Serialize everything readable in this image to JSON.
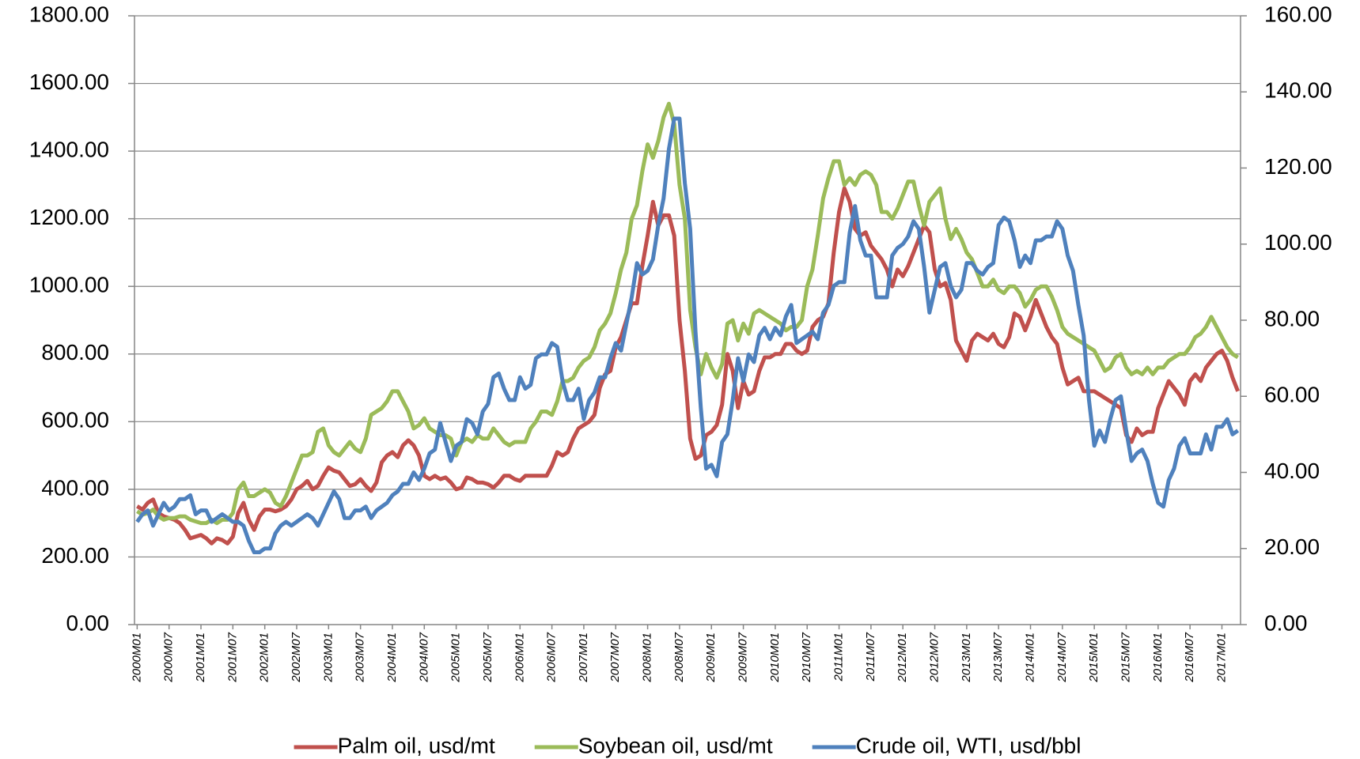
{
  "chart_data": {
    "type": "line",
    "categories": [
      "2000M01",
      null,
      null,
      null,
      null,
      null,
      "2000M07",
      null,
      null,
      null,
      null,
      null,
      "2001M01",
      null,
      null,
      null,
      null,
      null,
      "2001M07",
      null,
      null,
      null,
      null,
      null,
      "2002M01",
      null,
      null,
      null,
      null,
      null,
      "2002M07",
      null,
      null,
      null,
      null,
      null,
      "2003M01",
      null,
      null,
      null,
      null,
      null,
      "2003M07",
      null,
      null,
      null,
      null,
      null,
      "2004M01",
      null,
      null,
      null,
      null,
      null,
      "2004M07",
      null,
      null,
      null,
      null,
      null,
      "2005M01",
      null,
      null,
      null,
      null,
      null,
      "2005M07",
      null,
      null,
      null,
      null,
      null,
      "2006M01",
      null,
      null,
      null,
      null,
      null,
      "2006M07",
      null,
      null,
      null,
      null,
      null,
      "2007M01",
      null,
      null,
      null,
      null,
      null,
      "2007M07",
      null,
      null,
      null,
      null,
      null,
      "2008M01",
      null,
      null,
      null,
      null,
      null,
      "2008M07",
      null,
      null,
      null,
      null,
      null,
      "2009M01",
      null,
      null,
      null,
      null,
      null,
      "2009M07",
      null,
      null,
      null,
      null,
      null,
      "2010M01",
      null,
      null,
      null,
      null,
      null,
      "2010M07",
      null,
      null,
      null,
      null,
      null,
      "2011M01",
      null,
      null,
      null,
      null,
      null,
      "2011M07",
      null,
      null,
      null,
      null,
      null,
      "2012M01",
      null,
      null,
      null,
      null,
      null,
      "2012M07",
      null,
      null,
      null,
      null,
      null,
      "2013M01",
      null,
      null,
      null,
      null,
      null,
      "2013M07",
      null,
      null,
      null,
      null,
      null,
      "2014M01",
      null,
      null,
      null,
      null,
      null,
      "2014M07",
      null,
      null,
      null,
      null,
      null,
      "2015M01",
      null,
      null,
      null,
      null,
      null,
      "2015M07",
      null,
      null,
      null,
      null,
      null,
      "2016M01",
      null,
      null,
      null,
      null,
      null,
      "2016M07",
      null,
      null,
      null,
      null,
      null,
      "2017M01",
      null,
      null,
      null
    ],
    "series": [
      {
        "name": "Palm oil, usd/mt",
        "color": "#c0504d",
        "values": [
          350,
          340,
          360,
          370,
          330,
          320,
          315,
          310,
          300,
          280,
          255,
          260,
          265,
          255,
          240,
          255,
          250,
          240,
          260,
          330,
          360,
          310,
          280,
          320,
          340,
          340,
          335,
          340,
          350,
          370,
          400,
          410,
          425,
          400,
          410,
          440,
          465,
          455,
          450,
          430,
          410,
          415,
          430,
          410,
          395,
          420,
          480,
          500,
          510,
          495,
          530,
          545,
          530,
          500,
          440,
          430,
          440,
          430,
          435,
          420,
          400,
          405,
          435,
          430,
          420,
          420,
          415,
          405,
          420,
          440,
          440,
          430,
          425,
          440,
          440,
          440,
          440,
          440,
          470,
          510,
          500,
          510,
          550,
          580,
          590,
          600,
          620,
          700,
          740,
          750,
          820,
          850,
          900,
          950,
          950,
          1060,
          1150,
          1250,
          1180,
          1210,
          1210,
          1150,
          900,
          750,
          550,
          490,
          500,
          560,
          570,
          590,
          650,
          800,
          750,
          640,
          720,
          680,
          690,
          750,
          790,
          790,
          800,
          800,
          830,
          830,
          810,
          800,
          810,
          880,
          900,
          910,
          950,
          1100,
          1220,
          1290,
          1250,
          1170,
          1150,
          1160,
          1120,
          1100,
          1080,
          1050,
          1000,
          1050,
          1030,
          1060,
          1100,
          1140,
          1180,
          1160,
          1050,
          1000,
          1010,
          960,
          840,
          810,
          780,
          840,
          860,
          850,
          840,
          860,
          830,
          820,
          850,
          920,
          910,
          870,
          910,
          960,
          920,
          880,
          850,
          830,
          760,
          710,
          720,
          730,
          690,
          690,
          690,
          680,
          670,
          660,
          650,
          640,
          560,
          540,
          580,
          560,
          570,
          570,
          640,
          680,
          720,
          700,
          680,
          650,
          720,
          740,
          720,
          760,
          780,
          800,
          810,
          780,
          730,
          690
        ]
      },
      {
        "name": "Soybean oil, usd/mt",
        "color": "#9bbb59",
        "values": [
          335,
          325,
          330,
          340,
          320,
          310,
          315,
          315,
          320,
          320,
          310,
          305,
          300,
          300,
          310,
          300,
          310,
          310,
          330,
          400,
          420,
          380,
          380,
          390,
          400,
          390,
          360,
          350,
          380,
          420,
          460,
          500,
          500,
          510,
          570,
          580,
          530,
          510,
          500,
          520,
          540,
          520,
          510,
          550,
          620,
          630,
          640,
          660,
          690,
          690,
          660,
          630,
          580,
          590,
          610,
          580,
          570,
          560,
          560,
          550,
          500,
          540,
          550,
          540,
          560,
          550,
          550,
          580,
          560,
          540,
          530,
          540,
          540,
          540,
          580,
          600,
          630,
          630,
          620,
          660,
          720,
          720,
          730,
          760,
          780,
          790,
          820,
          870,
          890,
          920,
          980,
          1050,
          1100,
          1200,
          1240,
          1340,
          1420,
          1380,
          1430,
          1500,
          1540,
          1480,
          1300,
          1200,
          930,
          820,
          740,
          800,
          760,
          730,
          770,
          890,
          900,
          840,
          890,
          860,
          920,
          930,
          920,
          910,
          900,
          890,
          870,
          880,
          880,
          900,
          1000,
          1050,
          1150,
          1260,
          1320,
          1370,
          1370,
          1300,
          1320,
          1300,
          1330,
          1340,
          1330,
          1300,
          1220,
          1220,
          1200,
          1230,
          1270,
          1310,
          1310,
          1240,
          1180,
          1250,
          1270,
          1290,
          1200,
          1140,
          1170,
          1140,
          1100,
          1080,
          1040,
          1000,
          1000,
          1020,
          990,
          980,
          1000,
          1000,
          980,
          940,
          960,
          990,
          1000,
          1000,
          970,
          930,
          880,
          860,
          850,
          840,
          830,
          820,
          810,
          780,
          750,
          760,
          790,
          800,
          760,
          740,
          750,
          740,
          760,
          740,
          760,
          760,
          780,
          790,
          800,
          800,
          820,
          850,
          860,
          880,
          910,
          880,
          850,
          820,
          800,
          790
        ]
      },
      {
        "name": "Crude oil, WTI, usd/bbl",
        "color": "#4f81bd",
        "axis": "y2",
        "values": [
          27,
          29,
          30,
          26,
          29,
          32,
          30,
          31,
          33,
          33,
          34,
          29,
          30,
          30,
          27,
          28,
          29,
          28,
          27,
          27,
          26,
          22,
          19,
          19,
          20,
          20,
          24,
          26,
          27,
          26,
          27,
          28,
          29,
          28,
          26,
          29,
          32,
          35,
          33,
          28,
          28,
          30,
          30,
          31,
          28,
          30,
          31,
          32,
          34,
          35,
          37,
          37,
          40,
          38,
          41,
          45,
          46,
          53,
          48,
          43,
          47,
          48,
          54,
          53,
          50,
          56,
          58,
          65,
          66,
          62,
          59,
          59,
          65,
          62,
          63,
          70,
          71,
          71,
          74,
          73,
          64,
          59,
          59,
          62,
          54,
          59,
          61,
          65,
          65,
          70,
          74,
          72,
          79,
          86,
          95,
          92,
          93,
          96,
          105,
          112,
          125,
          133,
          133,
          116,
          104,
          77,
          57,
          41,
          42,
          39,
          48,
          50,
          59,
          70,
          64,
          71,
          69,
          76,
          78,
          75,
          78,
          76,
          81,
          84,
          74,
          75,
          76,
          77,
          75,
          82,
          84,
          89,
          90,
          90,
          103,
          110,
          101,
          97,
          97,
          86,
          86,
          86,
          97,
          99,
          100,
          102,
          106,
          104,
          94,
          82,
          88,
          94,
          95,
          89,
          86,
          88,
          95,
          95,
          93,
          92,
          94,
          95,
          105,
          107,
          106,
          101,
          94,
          97,
          95,
          101,
          101,
          102,
          102,
          106,
          104,
          97,
          93,
          84,
          76,
          59,
          47,
          51,
          48,
          54,
          59,
          60,
          51,
          43,
          45,
          46,
          43,
          37,
          32,
          31,
          38,
          41,
          47,
          49,
          45,
          45,
          45,
          50,
          46,
          52,
          52,
          54,
          50,
          51
        ]
      }
    ],
    "ylim": [
      0,
      1800
    ],
    "yticks": [
      {
        "value": 0,
        "label": "0.00"
      },
      {
        "value": 200,
        "label": "200.00"
      },
      {
        "value": 400,
        "label": "400.00"
      },
      {
        "value": 600,
        "label": "600.00"
      },
      {
        "value": 800,
        "label": "800.00"
      },
      {
        "value": 1000,
        "label": "1000.00"
      },
      {
        "value": 1200,
        "label": "1200.00"
      },
      {
        "value": 1400,
        "label": "1400.00"
      },
      {
        "value": 1600,
        "label": "1600.00"
      },
      {
        "value": 1800,
        "label": "1800.00"
      }
    ],
    "y2lim": [
      0,
      160
    ],
    "y2ticks": [
      {
        "value": 0,
        "label": "0.00"
      },
      {
        "value": 20,
        "label": "20.00"
      },
      {
        "value": 40,
        "label": "40.00"
      },
      {
        "value": 60,
        "label": "60.00"
      },
      {
        "value": 80,
        "label": "80.00"
      },
      {
        "value": 100,
        "label": "100.00"
      },
      {
        "value": 120,
        "label": "120.00"
      },
      {
        "value": 140,
        "label": "140.00"
      },
      {
        "value": 160,
        "label": "160.00"
      }
    ],
    "grid": true,
    "legend": "bottom"
  }
}
